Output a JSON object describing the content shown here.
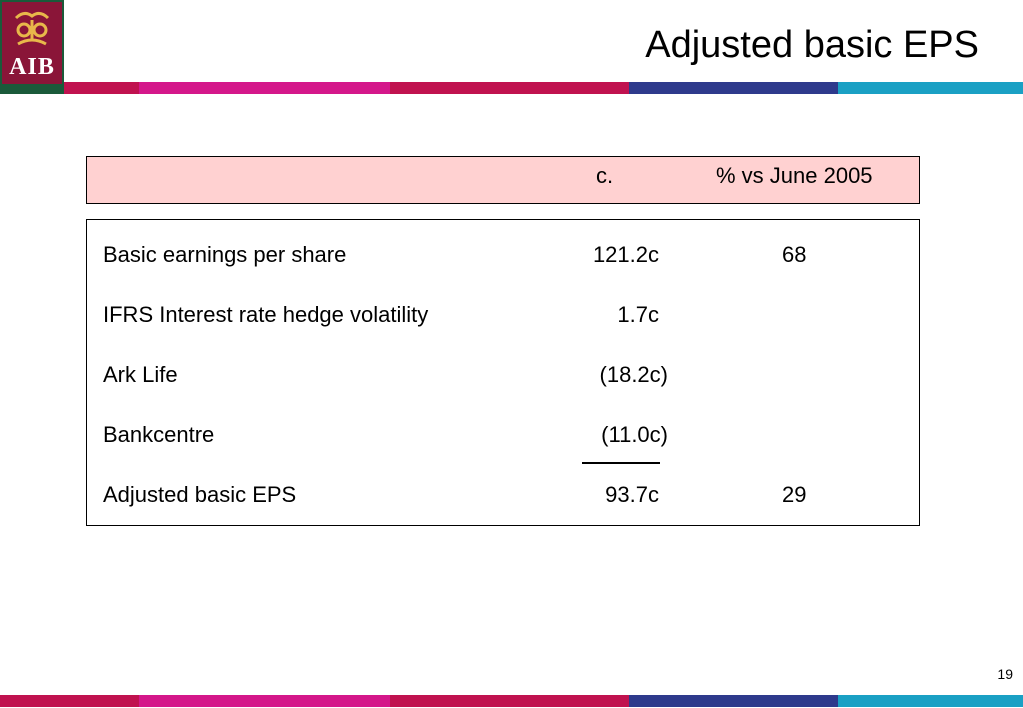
{
  "logo": {
    "text": "AIB"
  },
  "title": "Adjusted basic EPS",
  "table": {
    "header": {
      "col1": "c.",
      "col2": "% vs June 2005"
    },
    "rows": [
      {
        "label": "Basic earnings per share",
        "value": "121.2c",
        "pct": "68"
      },
      {
        "label": "IFRS Interest rate hedge volatility",
        "value": "1.7c",
        "pct": ""
      },
      {
        "label": "Ark Life",
        "value": "(18.2c)",
        "pct": ""
      },
      {
        "label": "Bankcentre",
        "value": "(11.0c)",
        "pct": ""
      },
      {
        "label": "Adjusted basic EPS",
        "value": "93.7c",
        "pct": "29"
      }
    ]
  },
  "page_number": "19",
  "colors": {
    "logo_bg": "#8a1538",
    "logo_gold": "#e8b84a",
    "header_fill": "#ffd1d1",
    "stripe": [
      "#c0124f",
      "#d4178a",
      "#c0124f",
      "#2e3a8c",
      "#1aa0c4"
    ]
  }
}
